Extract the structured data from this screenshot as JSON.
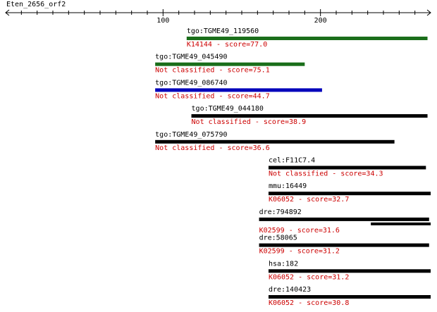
{
  "query": {
    "name": "Eten_2656_orf2",
    "axis": {
      "min": 0,
      "max": 270,
      "ticks": [
        {
          "value": 100,
          "label": "100"
        },
        {
          "value": 200,
          "label": "200"
        }
      ]
    }
  },
  "colors": {
    "axis": "#000000",
    "name_text": "#000000",
    "desc_text": "#cc0000",
    "green": "#1a6e1a",
    "blue": "#0000bb",
    "black": "#000000"
  },
  "hits": [
    {
      "name": "tgo:TGME49_119560",
      "desc": "K14144 - score=77.0",
      "start": 115,
      "end": 268,
      "color": "green"
    },
    {
      "name": "tgo:TGME49_045490",
      "desc": "Not classified - score=75.1",
      "start": 95,
      "end": 190,
      "color": "green"
    },
    {
      "name": "tgo:TGME49_086740",
      "desc": "Not classified - score=44.7",
      "start": 95,
      "end": 201,
      "color": "blue"
    },
    {
      "name": "tgo:TGME49_044180",
      "desc": "Not classified - score=38.9",
      "start": 118,
      "end": 268,
      "color": "black"
    },
    {
      "name": "tgo:TGME49_075790",
      "desc": "Not classified - score=36.6",
      "start": 95,
      "end": 247,
      "color": "black"
    },
    {
      "name": "cel:F11C7.4",
      "desc": "Not classified - score=34.3",
      "start": 167,
      "end": 267,
      "color": "black"
    },
    {
      "name": "mmu:16449",
      "desc": "K06052 - score=32.7",
      "start": 167,
      "end": 270,
      "color": "black"
    },
    {
      "name": "dre:794892",
      "desc": "K02599 - score=31.6",
      "start": 161,
      "end": 269,
      "color": "black",
      "extra": {
        "start": 232,
        "end": 270
      }
    },
    {
      "name": "dre:58065",
      "desc": "K02599 - score=31.2",
      "start": 161,
      "end": 269,
      "color": "black"
    },
    {
      "name": "hsa:182",
      "desc": "K06052 - score=31.2",
      "start": 167,
      "end": 270,
      "color": "black"
    },
    {
      "name": "dre:140423",
      "desc": "K06052 - score=30.8",
      "start": 167,
      "end": 270,
      "color": "black"
    }
  ]
}
